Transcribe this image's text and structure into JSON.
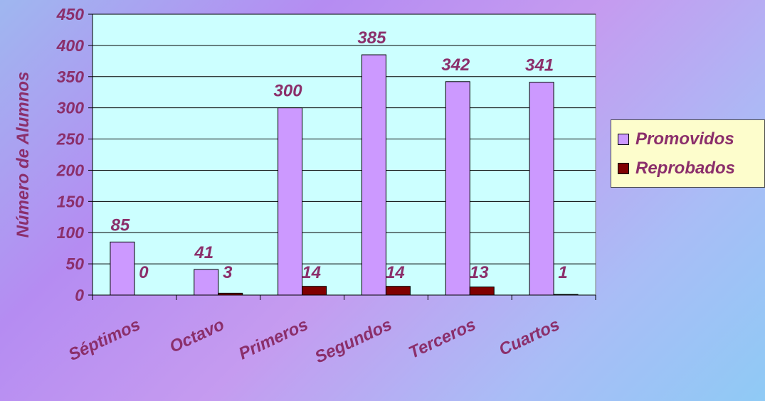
{
  "chart_data": {
    "type": "bar",
    "title": "",
    "xlabel": "",
    "ylabel": "Número de Alumnos",
    "categories": [
      "Séptimos",
      "Octavo",
      "Primeros",
      "Segundos",
      "Terceros",
      "Cuartos"
    ],
    "series": [
      {
        "name": "Promovidos",
        "values": [
          85,
          41,
          300,
          385,
          342,
          341
        ],
        "color": "#cc99ff"
      },
      {
        "name": "Reprobados",
        "values": [
          0,
          3,
          14,
          14,
          13,
          1
        ],
        "color": "#800000"
      }
    ],
    "ylim": [
      0,
      450
    ],
    "yticks": [
      0,
      50,
      100,
      150,
      200,
      250,
      300,
      350,
      400,
      450
    ],
    "grid": true,
    "legend_position": "right",
    "plot_background": "#ccffff",
    "text_color": "#8b2f6b"
  }
}
